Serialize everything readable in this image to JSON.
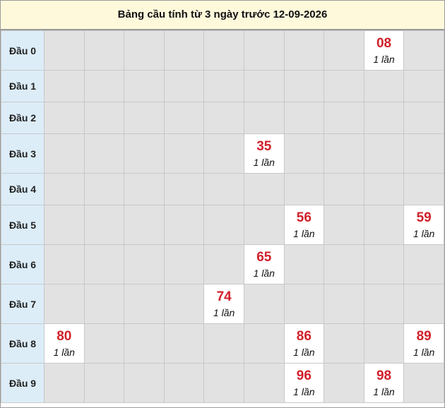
{
  "header": {
    "title": "Bảng cầu tính từ 3 ngày trước 12-09-2026"
  },
  "table": {
    "rows": [
      {
        "label": "Đầu 0",
        "cells": [
          null,
          null,
          null,
          null,
          null,
          null,
          null,
          null,
          {
            "number": "08",
            "count": "1 lần"
          },
          null
        ]
      },
      {
        "label": "Đầu 1",
        "cells": [
          null,
          null,
          null,
          null,
          null,
          null,
          null,
          null,
          null,
          null
        ]
      },
      {
        "label": "Đầu 2",
        "cells": [
          null,
          null,
          null,
          null,
          null,
          null,
          null,
          null,
          null,
          null
        ]
      },
      {
        "label": "Đầu 3",
        "cells": [
          null,
          null,
          null,
          null,
          null,
          {
            "number": "35",
            "count": "1 lần"
          },
          null,
          null,
          null,
          null
        ]
      },
      {
        "label": "Đầu 4",
        "cells": [
          null,
          null,
          null,
          null,
          null,
          null,
          null,
          null,
          null,
          null
        ]
      },
      {
        "label": "Đầu 5",
        "cells": [
          null,
          null,
          null,
          null,
          null,
          null,
          {
            "number": "56",
            "count": "1 lần"
          },
          null,
          null,
          {
            "number": "59",
            "count": "1 lần"
          }
        ]
      },
      {
        "label": "Đầu 6",
        "cells": [
          null,
          null,
          null,
          null,
          null,
          {
            "number": "65",
            "count": "1 lần"
          },
          null,
          null,
          null,
          null
        ]
      },
      {
        "label": "Đầu 7",
        "cells": [
          null,
          null,
          null,
          null,
          {
            "number": "74",
            "count": "1 lần"
          },
          null,
          null,
          null,
          null,
          null
        ]
      },
      {
        "label": "Đầu 8",
        "cells": [
          {
            "number": "80",
            "count": "1 lần"
          },
          null,
          null,
          null,
          null,
          null,
          {
            "number": "86",
            "count": "1 lần"
          },
          null,
          null,
          {
            "number": "89",
            "count": "1 lần"
          }
        ]
      },
      {
        "label": "Đầu 9",
        "cells": [
          null,
          null,
          null,
          null,
          null,
          null,
          {
            "number": "96",
            "count": "1 lần"
          },
          null,
          {
            "number": "98",
            "count": "1 lần"
          },
          null
        ]
      }
    ]
  }
}
